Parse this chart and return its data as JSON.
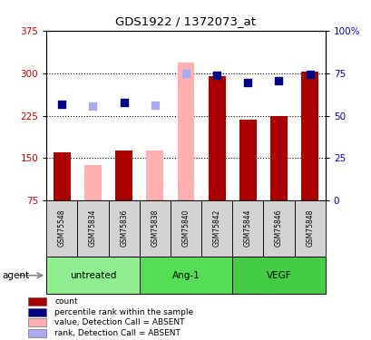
{
  "title": "GDS1922 / 1372073_at",
  "samples": [
    "GSM75548",
    "GSM75834",
    "GSM75836",
    "GSM75838",
    "GSM75840",
    "GSM75842",
    "GSM75844",
    "GSM75846",
    "GSM75848"
  ],
  "group_info": [
    {
      "label": "untreated",
      "start": 0,
      "end": 2,
      "color": "#90ee90"
    },
    {
      "label": "Ang-1",
      "start": 3,
      "end": 5,
      "color": "#55dd55"
    },
    {
      "label": "VEGF",
      "start": 6,
      "end": 8,
      "color": "#44cc44"
    }
  ],
  "bar_values": [
    160,
    0,
    163,
    0,
    0,
    295,
    218,
    224,
    302
  ],
  "bar_absent_values": [
    0,
    138,
    0,
    163,
    318,
    0,
    0,
    0,
    0
  ],
  "bar_color_present": "#aa0000",
  "bar_color_absent": "#ffb0b0",
  "pct_present": [
    245,
    0,
    248,
    0,
    0,
    296,
    284,
    286,
    298
  ],
  "pct_absent": [
    0,
    242,
    0,
    243,
    299,
    0,
    0,
    0,
    0
  ],
  "pct_color_present": "#00008b",
  "pct_color_absent": "#aaaaee",
  "ylim_left": [
    75,
    375
  ],
  "ylim_right": [
    0,
    100
  ],
  "yticks_left": [
    75,
    150,
    225,
    300,
    375
  ],
  "yticks_right": [
    0,
    25,
    50,
    75,
    100
  ],
  "grid_lines": [
    150,
    225,
    300
  ],
  "left_axis_color": "#cc0000",
  "right_axis_color": "#0000cc",
  "legend_colors": [
    "#aa0000",
    "#00008b",
    "#ffb0b0",
    "#aaaaee"
  ],
  "legend_labels": [
    "count",
    "percentile rank within the sample",
    "value, Detection Call = ABSENT",
    "rank, Detection Call = ABSENT"
  ],
  "agent_label": "agent"
}
